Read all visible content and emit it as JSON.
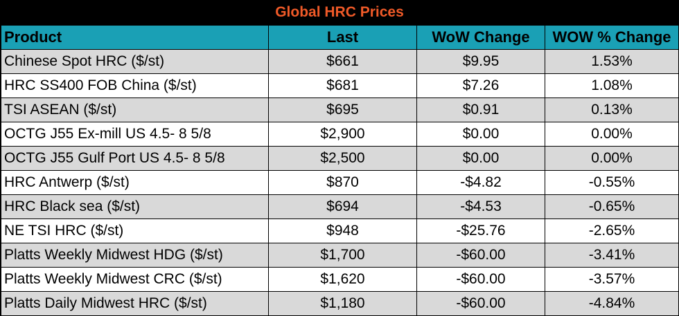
{
  "title": "Global HRC Prices",
  "colors": {
    "title_bg": "#000000",
    "title_text": "#f05a28",
    "header_bg": "#1aa0b5",
    "alt_row_bg": "#d9d9d9"
  },
  "columns": [
    "Product",
    "Last",
    "WoW Change",
    "WOW % Change"
  ],
  "rows": [
    {
      "product": "Chinese Spot HRC ($/st)",
      "last": "$661",
      "wow_change": "$9.95",
      "wow_pct": "1.53%"
    },
    {
      "product": "HRC SS400 FOB China ($/st)",
      "last": "$681",
      "wow_change": "$7.26",
      "wow_pct": "1.08%"
    },
    {
      "product": "TSI ASEAN ($/st)",
      "last": "$695",
      "wow_change": "$0.91",
      "wow_pct": "0.13%"
    },
    {
      "product": "OCTG J55 Ex-mill US 4.5- 8 5/8",
      "last": "$2,900",
      "wow_change": "$0.00",
      "wow_pct": "0.00%"
    },
    {
      "product": "OCTG J55 Gulf Port US 4.5- 8 5/8",
      "last": "$2,500",
      "wow_change": "$0.00",
      "wow_pct": "0.00%"
    },
    {
      "product": "HRC Antwerp ($/st)",
      "last": "$870",
      "wow_change": "-$4.82",
      "wow_pct": "-0.55%"
    },
    {
      "product": "HRC Black sea ($/st)",
      "last": "$694",
      "wow_change": "-$4.53",
      "wow_pct": "-0.65%"
    },
    {
      "product": "NE TSI HRC ($/st)",
      "last": "$948",
      "wow_change": "-$25.76",
      "wow_pct": "-2.65%"
    },
    {
      "product": "Platts Weekly Midwest HDG ($/st)",
      "last": "$1,700",
      "wow_change": "-$60.00",
      "wow_pct": "-3.41%"
    },
    {
      "product": "Platts Weekly Midwest CRC ($/st)",
      "last": "$1,620",
      "wow_change": "-$60.00",
      "wow_pct": "-3.57%"
    },
    {
      "product": "Platts Daily Midwest HRC ($/st)",
      "last": "$1,180",
      "wow_change": "-$60.00",
      "wow_pct": "-4.84%"
    }
  ]
}
